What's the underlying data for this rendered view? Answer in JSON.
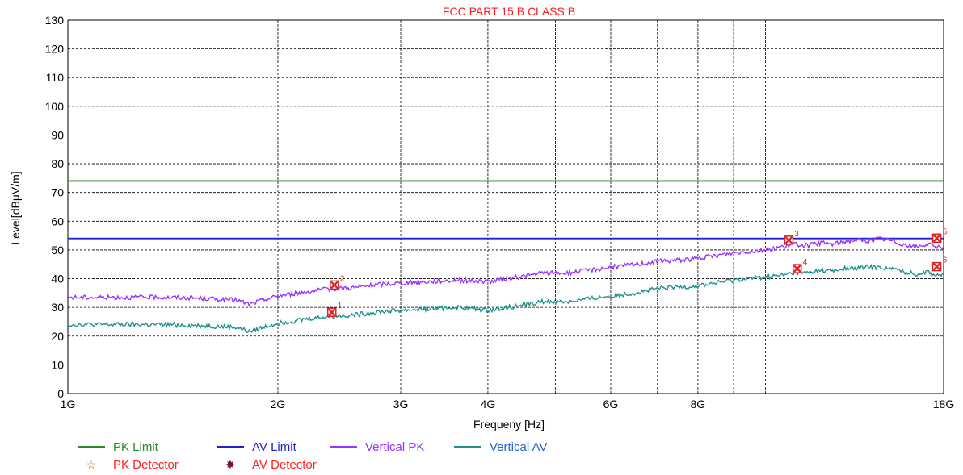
{
  "chart_data": {
    "type": "line",
    "title": "FCC PART 15 B CLASS B",
    "xlabel": "Frequeny [Hz]",
    "ylabel": "Level[dBµV/m]",
    "x_scale": "log",
    "xlim": [
      1,
      18
    ],
    "ylim": [
      0,
      130
    ],
    "x_tick_labels": [
      {
        "value": 1,
        "label": "1G"
      },
      {
        "value": 2,
        "label": "2G"
      },
      {
        "value": 3,
        "label": "3G"
      },
      {
        "value": 4,
        "label": "4G"
      },
      {
        "value": 6,
        "label": "6G"
      },
      {
        "value": 8,
        "label": "8G"
      },
      {
        "value": 18,
        "label": "18G"
      }
    ],
    "x_gridlines": [
      2,
      3,
      4,
      5,
      6,
      7,
      8,
      9,
      10
    ],
    "y_ticks": [
      0,
      10,
      20,
      30,
      40,
      50,
      60,
      70,
      80,
      90,
      100,
      110,
      120,
      130
    ],
    "grid": true,
    "legend_position": "bottom",
    "series": [
      {
        "name": "PK Limit",
        "color": "#2a8a2a",
        "x": [
          1,
          18
        ],
        "values": [
          74,
          74
        ]
      },
      {
        "name": "AV Limit",
        "color": "#2222cc",
        "x": [
          1,
          18
        ],
        "values": [
          54,
          54
        ]
      },
      {
        "name": "Vertical PK",
        "color": "#9933ff",
        "x": [
          1.0,
          1.2,
          1.4,
          1.6,
          1.75,
          1.82,
          1.9,
          2.0,
          2.2,
          2.4,
          2.6,
          2.8,
          3.0,
          3.3,
          3.6,
          4.0,
          4.4,
          4.8,
          5.2,
          5.6,
          6.0,
          6.5,
          7.0,
          7.5,
          8.0,
          8.5,
          9.0,
          9.5,
          10.0,
          10.5,
          11.0,
          11.5,
          12.0,
          12.5,
          13.0,
          13.5,
          14.0,
          14.5,
          15.0,
          15.5,
          16.0,
          16.5,
          17.0,
          17.5,
          18.0
        ],
        "values": [
          33.5,
          33.5,
          33.5,
          33,
          32.5,
          31,
          32.5,
          34,
          35.5,
          36.5,
          37,
          38,
          38.5,
          39,
          39.5,
          39,
          40.5,
          42,
          42,
          43,
          44,
          45,
          46,
          46.5,
          47,
          48,
          49,
          49.5,
          50,
          51,
          52,
          51.5,
          52.5,
          52,
          53,
          53.5,
          53,
          54,
          53.5,
          52.5,
          51.5,
          51,
          52,
          51,
          51
        ]
      },
      {
        "name": "Vertical AV",
        "color": "#1f9090",
        "x": [
          1.0,
          1.2,
          1.4,
          1.6,
          1.75,
          1.82,
          1.9,
          2.0,
          2.2,
          2.4,
          2.6,
          2.8,
          3.0,
          3.3,
          3.6,
          4.0,
          4.4,
          4.8,
          5.2,
          5.6,
          6.0,
          6.5,
          7.0,
          7.5,
          8.0,
          8.5,
          9.0,
          9.5,
          10.0,
          10.5,
          11.0,
          11.5,
          12.0,
          12.5,
          13.0,
          13.5,
          14.0,
          14.5,
          15.0,
          15.5,
          16.0,
          16.5,
          17.0,
          17.5,
          18.0
        ],
        "values": [
          24,
          24,
          24,
          23.5,
          23,
          21.5,
          23,
          24.5,
          26,
          27,
          27.5,
          28.5,
          29,
          29.5,
          30,
          29,
          30.5,
          32,
          32,
          33,
          34,
          35,
          36.5,
          37,
          37.5,
          38.5,
          39.5,
          40,
          40.5,
          41,
          42,
          42,
          43,
          42.5,
          43.5,
          43.5,
          44,
          44,
          43.5,
          43,
          42,
          41.5,
          42.5,
          41.5,
          41
        ]
      }
    ],
    "markers": [
      {
        "label": "1",
        "x": 2.39,
        "y": 28.3
      },
      {
        "label": "2",
        "x": 2.41,
        "y": 37.8
      },
      {
        "label": "3",
        "x": 10.8,
        "y": 53.4
      },
      {
        "label": "4",
        "x": 11.1,
        "y": 43.5
      },
      {
        "label": "5",
        "x": 17.6,
        "y": 54.1
      },
      {
        "label": "6",
        "x": 17.6,
        "y": 44.2
      }
    ],
    "legend_extra": [
      {
        "name": "PK Detector",
        "symbol": "☆",
        "color": "#e07020"
      },
      {
        "name": "AV Detector",
        "symbol": "✸",
        "color": "#7a1040"
      }
    ]
  },
  "colors": {
    "title": "#ff2020",
    "marker": "#e02020",
    "legend_text": "#ff2020",
    "legend_text_av": "#2266cc"
  }
}
